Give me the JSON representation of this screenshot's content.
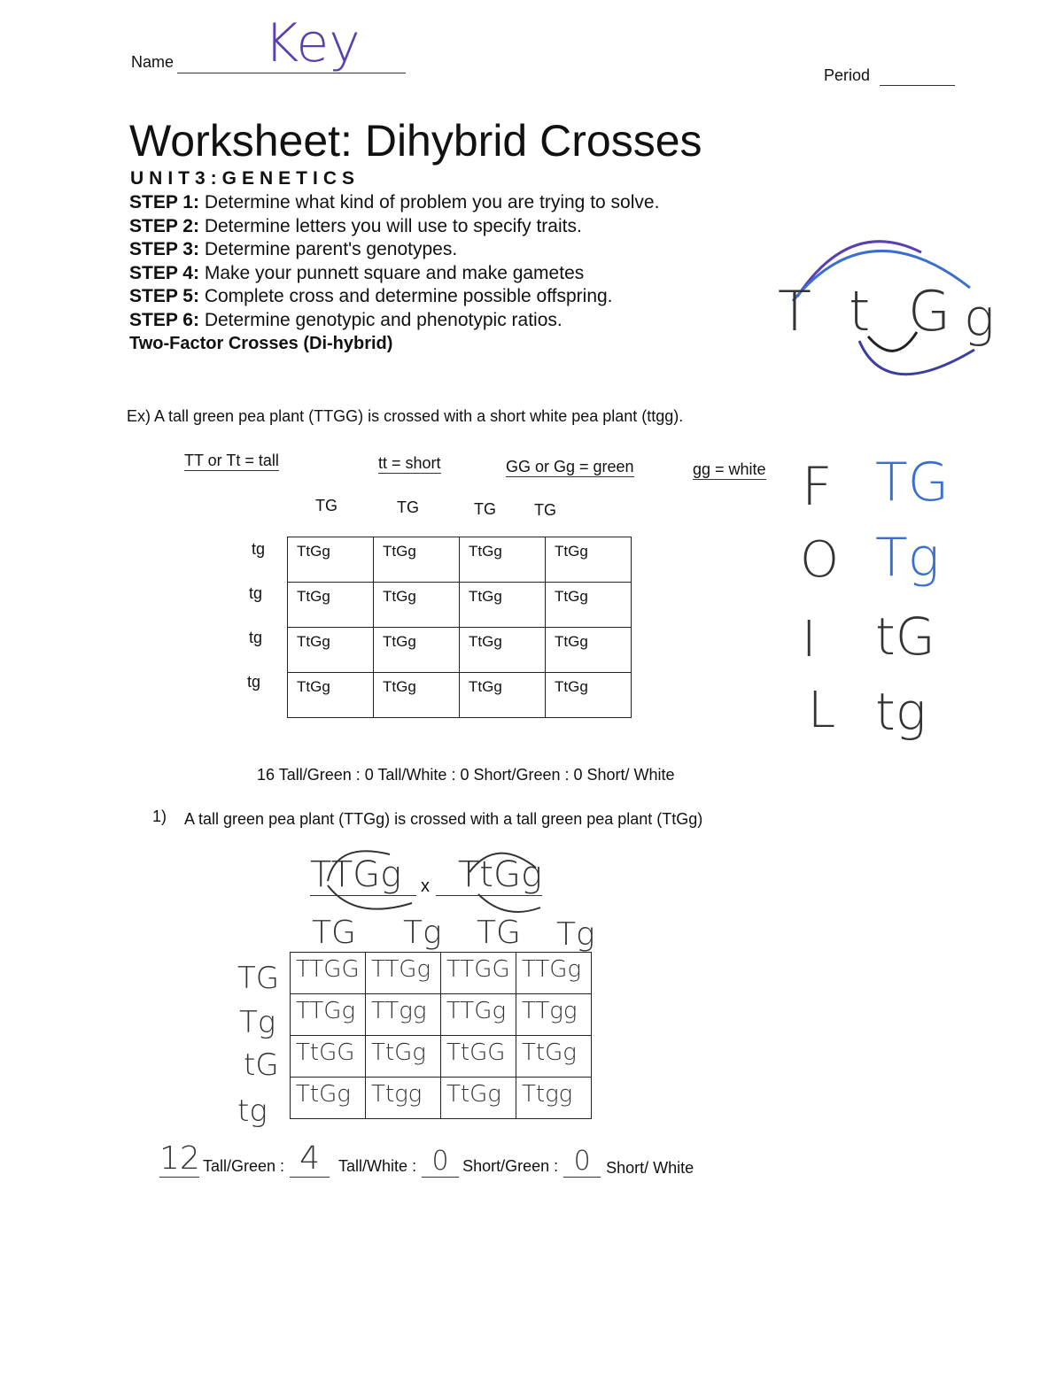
{
  "header": {
    "name_label": "Name",
    "name_value": "Key",
    "period_label": "Period"
  },
  "title": "Worksheet: Dihybrid Crosses",
  "unit": "UNIT3:GENETICS",
  "steps": [
    {
      "label": "STEP 1:",
      "text": "Determine what kind of problem you are trying to solve."
    },
    {
      "label": "STEP 2:",
      "text": "Determine letters you will use to specify traits."
    },
    {
      "label": "STEP 3:",
      "text": "Determine parent's genotypes."
    },
    {
      "label": "STEP 4:",
      "text": "Make your punnett square and make gametes"
    },
    {
      "label": "STEP 5:",
      "text": "Complete cross and determine possible offspring."
    },
    {
      "label": "STEP 6:",
      "text": "Determine genotypic and phenotypic ratios."
    }
  ],
  "section_title": "Two-Factor Crosses (Di-hybrid)",
  "foil_diagram": {
    "letters": [
      "T",
      "t",
      "G",
      "g"
    ]
  },
  "example": {
    "prompt": "Ex) A tall green pea plant (TTGG) is crossed with a short white pea plant (ttgg).",
    "key": [
      "TT or Tt = tall",
      "tt = short",
      "GG or Gg = green",
      "gg = white"
    ],
    "col_headers": [
      "TG",
      "TG",
      "TG",
      "TG"
    ],
    "row_headers": [
      "tg",
      "tg",
      "tg",
      "tg"
    ],
    "cells": [
      [
        "TtGg",
        "TtGg",
        "TtGg",
        "TtGg"
      ],
      [
        "TtGg",
        "TtGg",
        "TtGg",
        "TtGg"
      ],
      [
        "TtGg",
        "TtGg",
        "TtGg",
        "TtGg"
      ],
      [
        "TtGg",
        "TtGg",
        "TtGg",
        "TtGg"
      ]
    ],
    "ratio": "16 Tall/Green :  0 Tall/White :  0 Short/Green :  0 Short/ White"
  },
  "foil": [
    {
      "letter": "F",
      "gamete": "TG"
    },
    {
      "letter": "O",
      "gamete": "Tg"
    },
    {
      "letter": "I",
      "gamete": "tG"
    },
    {
      "letter": "L",
      "gamete": "tg"
    }
  ],
  "question1": {
    "number": "1)",
    "prompt": "A tall green pea plant (TTGg) is crossed with a tall green pea plant (TtGg)",
    "parent1": "TTGg",
    "cross": "x",
    "parent2": "TtGg",
    "col_headers": [
      "TG",
      "Tg",
      "TG",
      "Tg"
    ],
    "row_headers": [
      "TG",
      "Tg",
      "tG",
      "tg"
    ],
    "cells": [
      [
        "TTGG",
        "TTGg",
        "TTGG",
        "TTGg"
      ],
      [
        "TTGg",
        "TTgg",
        "TTGg",
        "TTgg"
      ],
      [
        "TtGG",
        "TtGg",
        "TtGG",
        "TtGg"
      ],
      [
        "TtGg",
        "Ttgg",
        "TtGg",
        "Ttgg"
      ]
    ],
    "answers": [
      {
        "value": "12",
        "label": "Tall/Green :"
      },
      {
        "value": "4",
        "label": "Tall/White :"
      },
      {
        "value": "0",
        "label": "Short/Green :"
      },
      {
        "value": "0",
        "label": "Short/ White"
      }
    ]
  }
}
